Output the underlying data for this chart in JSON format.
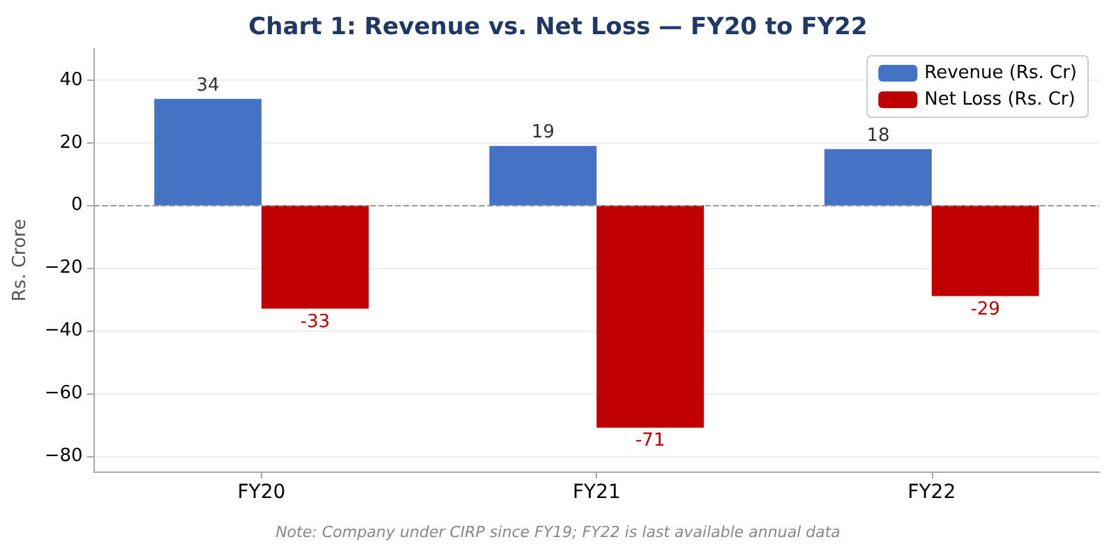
{
  "chart_data": {
    "type": "bar",
    "title": "Chart 1: Revenue vs. Net Loss — FY20 to FY22",
    "ylabel": "Rs. Crore",
    "categories": [
      "FY20",
      "FY21",
      "FY22"
    ],
    "series": [
      {
        "name": "Revenue (Rs. Cr)",
        "color": "#4472c4",
        "values": [
          34,
          19,
          18
        ]
      },
      {
        "name": "Net Loss (Rs. Cr)",
        "color": "#c00000",
        "values": [
          -33,
          -71,
          -29
        ]
      }
    ],
    "ylim": [
      -85,
      50
    ],
    "yticks": [
      -80,
      -60,
      -40,
      -20,
      0,
      20,
      40
    ],
    "grid": "y",
    "legend": "top right",
    "data_labels": true,
    "ref_lines": [
      {
        "axis": "y",
        "value": 0,
        "color": "#999999",
        "line_style": "dashed"
      }
    ],
    "annotations": [
      "Note: Company under CIRP since FY19; FY22 is last available annual data"
    ]
  }
}
